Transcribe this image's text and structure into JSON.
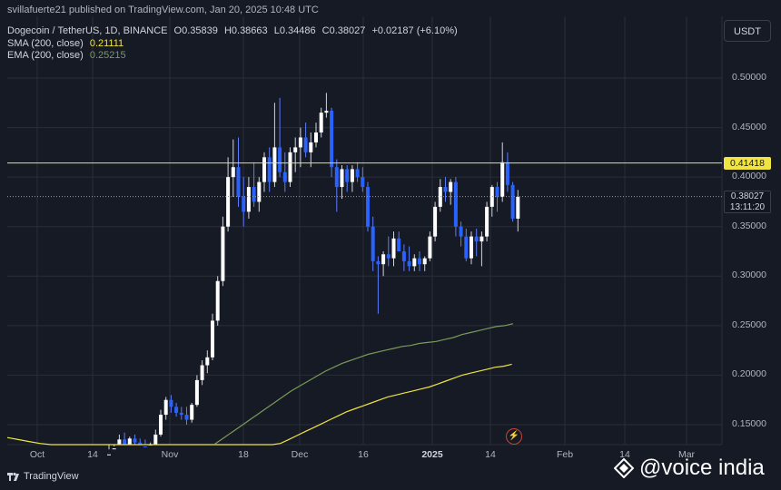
{
  "publisher": "svillafuerte21 published on TradingView.com, Jan 20, 2025 10:48 UTC",
  "symbol": "Dogecoin / TetherUS, 1D, BINANCE",
  "ohlc": {
    "o_label": "O",
    "o": "0.35839",
    "h_label": "H",
    "h": "0.38663",
    "l_label": "L",
    "l": "0.34486",
    "c_label": "C",
    "c": "0.38027",
    "chg": "+0.02187 (+6.10%)"
  },
  "sma": {
    "label": "SMA (200, close)",
    "value": "0.21111",
    "color": "#f0e442"
  },
  "ema": {
    "label": "EMA (200, close)",
    "value": "0.25215",
    "color": "#7a9a5a"
  },
  "currency": "USDT",
  "resistance": {
    "value": "0.41418",
    "color": "#f0e442"
  },
  "last": {
    "price": "0.38027",
    "countdown": "13:11:20"
  },
  "footer": {
    "brand": "TradingView",
    "watermark": "@voice india"
  },
  "y_ticks": [
    "0.50000",
    "0.45000",
    "0.40000",
    "0.35000",
    "0.30000",
    "0.25000",
    "0.20000",
    "0.15000"
  ],
  "x_ticks": [
    {
      "label": "Oct",
      "bold": false
    },
    {
      "label": "14",
      "bold": false
    },
    {
      "label": "Nov",
      "bold": false
    },
    {
      "label": "18",
      "bold": false
    },
    {
      "label": "Dec",
      "bold": false
    },
    {
      "label": "16",
      "bold": false
    },
    {
      "label": "2025",
      "bold": true
    },
    {
      "label": "14",
      "bold": false
    },
    {
      "label": "Feb",
      "bold": false
    },
    {
      "label": "14",
      "bold": false
    },
    {
      "label": "Mar",
      "bold": false
    }
  ],
  "chart_data": {
    "type": "candlestick",
    "title": "Dogecoin / TetherUS, 1D, BINANCE",
    "ylim": [
      0.13,
      0.54
    ],
    "grid": true,
    "colors": {
      "up": "#ffffff",
      "down": "#2962ff"
    },
    "candles": [
      [
        0.118,
        0.125,
        0.112,
        0.12
      ],
      [
        0.12,
        0.128,
        0.115,
        0.126
      ],
      [
        0.126,
        0.14,
        0.122,
        0.135
      ],
      [
        0.135,
        0.142,
        0.128,
        0.13
      ],
      [
        0.13,
        0.138,
        0.125,
        0.136
      ],
      [
        0.136,
        0.14,
        0.128,
        0.132
      ],
      [
        0.132,
        0.136,
        0.125,
        0.128
      ],
      [
        0.128,
        0.135,
        0.12,
        0.124
      ],
      [
        0.124,
        0.132,
        0.118,
        0.13
      ],
      [
        0.13,
        0.145,
        0.127,
        0.14
      ],
      [
        0.14,
        0.165,
        0.138,
        0.16
      ],
      [
        0.16,
        0.178,
        0.155,
        0.175
      ],
      [
        0.175,
        0.18,
        0.162,
        0.168
      ],
      [
        0.168,
        0.172,
        0.158,
        0.162
      ],
      [
        0.162,
        0.168,
        0.155,
        0.16
      ],
      [
        0.16,
        0.168,
        0.15,
        0.155
      ],
      [
        0.155,
        0.172,
        0.152,
        0.17
      ],
      [
        0.17,
        0.2,
        0.168,
        0.195
      ],
      [
        0.195,
        0.215,
        0.19,
        0.21
      ],
      [
        0.21,
        0.225,
        0.202,
        0.218
      ],
      [
        0.218,
        0.262,
        0.215,
        0.255
      ],
      [
        0.255,
        0.3,
        0.25,
        0.295
      ],
      [
        0.295,
        0.36,
        0.29,
        0.35
      ],
      [
        0.35,
        0.42,
        0.345,
        0.4
      ],
      [
        0.4,
        0.438,
        0.38,
        0.41
      ],
      [
        0.41,
        0.44,
        0.37,
        0.38
      ],
      [
        0.38,
        0.4,
        0.35,
        0.365
      ],
      [
        0.365,
        0.4,
        0.358,
        0.39
      ],
      [
        0.39,
        0.415,
        0.37,
        0.375
      ],
      [
        0.375,
        0.4,
        0.365,
        0.395
      ],
      [
        0.395,
        0.425,
        0.385,
        0.42
      ],
      [
        0.42,
        0.43,
        0.385,
        0.395
      ],
      [
        0.395,
        0.475,
        0.39,
        0.43
      ],
      [
        0.43,
        0.48,
        0.4,
        0.405
      ],
      [
        0.405,
        0.425,
        0.385,
        0.395
      ],
      [
        0.395,
        0.43,
        0.39,
        0.425
      ],
      [
        0.425,
        0.44,
        0.405,
        0.43
      ],
      [
        0.43,
        0.45,
        0.41,
        0.44
      ],
      [
        0.44,
        0.455,
        0.42,
        0.425
      ],
      [
        0.425,
        0.445,
        0.41,
        0.435
      ],
      [
        0.435,
        0.455,
        0.43,
        0.445
      ],
      [
        0.445,
        0.47,
        0.44,
        0.465
      ],
      [
        0.465,
        0.485,
        0.46,
        0.467
      ],
      [
        0.467,
        0.47,
        0.4,
        0.41
      ],
      [
        0.41,
        0.418,
        0.365,
        0.39
      ],
      [
        0.39,
        0.412,
        0.378,
        0.408
      ],
      [
        0.408,
        0.412,
        0.385,
        0.395
      ],
      [
        0.395,
        0.412,
        0.385,
        0.408
      ],
      [
        0.408,
        0.415,
        0.395,
        0.4
      ],
      [
        0.4,
        0.41,
        0.385,
        0.39
      ],
      [
        0.39,
        0.395,
        0.345,
        0.35
      ],
      [
        0.35,
        0.36,
        0.305,
        0.315
      ],
      [
        0.315,
        0.32,
        0.262,
        0.312
      ],
      [
        0.312,
        0.325,
        0.3,
        0.322
      ],
      [
        0.322,
        0.34,
        0.31,
        0.318
      ],
      [
        0.318,
        0.345,
        0.31,
        0.338
      ],
      [
        0.338,
        0.345,
        0.325,
        0.325
      ],
      [
        0.325,
        0.332,
        0.305,
        0.315
      ],
      [
        0.315,
        0.33,
        0.305,
        0.31
      ],
      [
        0.31,
        0.322,
        0.305,
        0.318
      ],
      [
        0.318,
        0.325,
        0.305,
        0.312
      ],
      [
        0.312,
        0.32,
        0.305,
        0.318
      ],
      [
        0.318,
        0.345,
        0.315,
        0.34
      ],
      [
        0.34,
        0.375,
        0.335,
        0.37
      ],
      [
        0.37,
        0.398,
        0.365,
        0.39
      ],
      [
        0.39,
        0.4,
        0.375,
        0.385
      ],
      [
        0.385,
        0.398,
        0.372,
        0.395
      ],
      [
        0.395,
        0.4,
        0.34,
        0.35
      ],
      [
        0.35,
        0.355,
        0.33,
        0.34
      ],
      [
        0.34,
        0.348,
        0.315,
        0.318
      ],
      [
        0.318,
        0.345,
        0.312,
        0.34
      ],
      [
        0.34,
        0.348,
        0.32,
        0.335
      ],
      [
        0.335,
        0.345,
        0.31,
        0.34
      ],
      [
        0.34,
        0.375,
        0.335,
        0.37
      ],
      [
        0.37,
        0.392,
        0.36,
        0.39
      ],
      [
        0.39,
        0.395,
        0.365,
        0.38
      ],
      [
        0.38,
        0.435,
        0.375,
        0.415
      ],
      [
        0.415,
        0.425,
        0.385,
        0.392
      ],
      [
        0.392,
        0.395,
        0.355,
        0.358
      ],
      [
        0.358,
        0.387,
        0.345,
        0.38
      ]
    ],
    "sma_series": [
      0.137,
      0.135,
      0.133,
      0.131,
      0.129,
      0.127,
      0.126,
      0.125,
      0.124,
      0.123,
      0.122,
      0.122,
      0.123,
      0.124,
      0.126,
      0.128,
      0.131,
      0.135,
      0.139,
      0.143,
      0.147,
      0.151,
      0.155,
      0.159,
      0.163,
      0.166,
      0.169,
      0.172,
      0.175,
      0.178,
      0.18,
      0.182,
      0.184,
      0.186,
      0.188,
      0.191,
      0.194,
      0.197,
      0.2,
      0.202,
      0.204,
      0.206,
      0.208,
      0.209,
      0.211
    ],
    "ema_series": [
      0.13,
      0.136,
      0.142,
      0.148,
      0.154,
      0.16,
      0.166,
      0.172,
      0.178,
      0.184,
      0.189,
      0.194,
      0.199,
      0.204,
      0.208,
      0.212,
      0.215,
      0.218,
      0.221,
      0.223,
      0.225,
      0.227,
      0.229,
      0.23,
      0.232,
      0.233,
      0.234,
      0.236,
      0.238,
      0.241,
      0.243,
      0.245,
      0.247,
      0.249,
      0.25,
      0.252
    ]
  }
}
